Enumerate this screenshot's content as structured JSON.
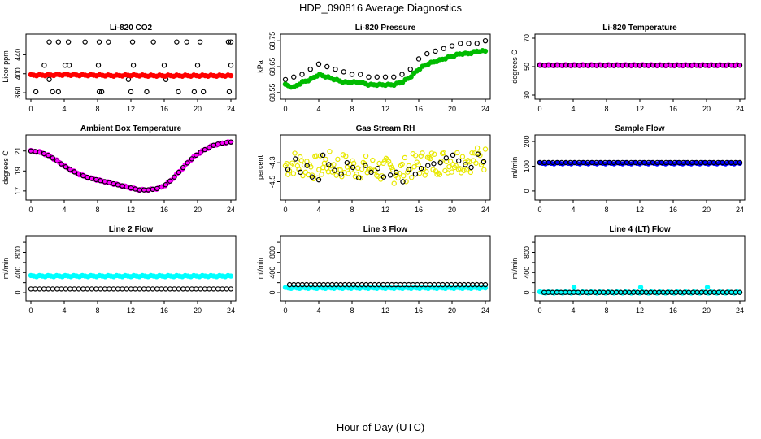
{
  "figure": {
    "title": "HDP_090816  Average Diagnostics",
    "xlabel": "Hour of Day (UTC)"
  },
  "chart_data": [
    {
      "type": "scatter",
      "title": "Li-820 CO2",
      "ylabel": "Licor ppm",
      "xlim": [
        0,
        24
      ],
      "ylim": [
        355,
        475
      ],
      "xticks": [
        0,
        4,
        8,
        12,
        16,
        20,
        24
      ],
      "yticks": [
        360,
        400,
        440
      ],
      "yticklabels": [
        "360",
        "400",
        "440"
      ],
      "series": [
        {
          "name": "open circles",
          "color": "#000000",
          "fill": false,
          "x": [
            2.2,
            3.3,
            4.5,
            6.5,
            8.2,
            9.3,
            12.2,
            14.7,
            17.5,
            18.7,
            20.3,
            23.7,
            24.0
          ],
          "y": [
            467,
            467,
            467,
            467,
            467,
            467,
            467,
            467,
            467,
            467,
            467,
            467,
            467
          ]
        },
        {
          "name": "open circles upper",
          "color": "#000000",
          "fill": false,
          "x": [
            1.6,
            4.1,
            4.6,
            8.1,
            12.3,
            16.0,
            20.0,
            24.0
          ],
          "y": [
            418,
            418,
            418,
            418,
            418,
            418,
            418,
            418
          ]
        },
        {
          "name": "open circles lower",
          "color": "#000000",
          "fill": false,
          "x": [
            0.6,
            2.2,
            2.6,
            3.3,
            8.2,
            8.5,
            11.7,
            12.0,
            13.9,
            16.2,
            17.7,
            19.6,
            20.7,
            23.8
          ],
          "y": [
            362,
            388,
            362,
            362,
            362,
            362,
            388,
            362,
            362,
            388,
            362,
            362,
            362,
            362
          ]
        },
        {
          "name": "CO2 mean",
          "color": "#ff0000",
          "fill": true,
          "band": true,
          "x": [
            0,
            2,
            4,
            6,
            8,
            10,
            12,
            14,
            16,
            18,
            20,
            22,
            24
          ],
          "y": [
            397,
            397,
            398,
            397,
            397,
            396,
            397,
            396,
            396,
            396,
            396,
            396,
            396
          ]
        }
      ]
    },
    {
      "type": "scatter",
      "title": "Li-820 Pressure",
      "ylabel": "kPa",
      "xlim": [
        0,
        24
      ],
      "ylim": [
        68.54,
        68.76
      ],
      "xticks": [
        0,
        4,
        8,
        12,
        16,
        20,
        24
      ],
      "yticks": [
        68.55,
        68.65,
        68.75
      ],
      "yticklabels": [
        "68.55",
        "68.65",
        "68.75"
      ],
      "series": [
        {
          "name": "pressure black",
          "color": "#000000",
          "fill": false,
          "x": [
            0,
            1,
            2,
            3,
            4,
            5,
            6,
            7,
            8,
            9,
            10,
            11,
            12,
            13,
            14,
            15,
            16,
            17,
            18,
            19,
            20,
            21,
            22,
            23,
            24
          ],
          "y": [
            68.6,
            68.61,
            68.62,
            68.64,
            68.66,
            68.65,
            68.64,
            68.63,
            68.62,
            68.62,
            68.61,
            68.61,
            68.61,
            68.61,
            68.62,
            68.64,
            68.68,
            68.7,
            68.71,
            68.72,
            68.73,
            68.74,
            68.74,
            68.74,
            68.75
          ]
        },
        {
          "name": "pressure green",
          "color": "#00bb00",
          "fill": true,
          "band": true,
          "x": [
            0,
            1,
            2,
            3,
            4,
            5,
            6,
            7,
            8,
            9,
            10,
            11,
            12,
            13,
            14,
            15,
            16,
            17,
            18,
            19,
            20,
            21,
            22,
            23,
            24
          ],
          "y": [
            68.58,
            68.57,
            68.59,
            68.6,
            68.62,
            68.61,
            68.6,
            68.59,
            68.59,
            68.59,
            68.58,
            68.58,
            68.58,
            68.58,
            68.59,
            68.61,
            68.64,
            68.66,
            68.67,
            68.68,
            68.69,
            68.7,
            68.7,
            68.71,
            68.71
          ]
        }
      ]
    },
    {
      "type": "scatter",
      "title": "Li-820 Temperature",
      "ylabel": "degrees C",
      "xlim": [
        0,
        24
      ],
      "ylim": [
        30,
        70
      ],
      "xticks": [
        0,
        4,
        8,
        12,
        16,
        20,
        24
      ],
      "yticks": [
        30,
        50,
        70
      ],
      "yticklabels": [
        "30",
        "50",
        "70"
      ],
      "series": [
        {
          "name": "temperature",
          "color": "#ff00ff",
          "fill": true,
          "band": true,
          "x": [
            0,
            24
          ],
          "y": [
            51,
            51
          ]
        },
        {
          "name": "temperature black",
          "color": "#000000",
          "fill": false,
          "band": true,
          "x": [
            0,
            24
          ],
          "y": [
            51,
            51
          ]
        }
      ]
    },
    {
      "type": "scatter",
      "title": "Ambient Box Temperature",
      "ylabel": "degrees C",
      "xlim": [
        0,
        24
      ],
      "ylim": [
        16.5,
        22.2
      ],
      "xticks": [
        0,
        4,
        8,
        12,
        16,
        20,
        24
      ],
      "yticks": [
        17,
        19,
        21
      ],
      "yticklabels": [
        "17",
        "19",
        "21"
      ],
      "series": [
        {
          "name": "box temperature",
          "color": "#ff00ff",
          "fill": true,
          "band": true,
          "x": [
            0,
            1,
            2,
            3,
            4,
            5,
            6,
            7,
            8,
            9,
            10,
            11,
            12,
            13,
            14,
            15,
            16,
            17,
            18,
            19,
            20,
            21,
            22,
            23,
            24
          ],
          "y": [
            21.0,
            20.9,
            20.6,
            20.1,
            19.5,
            19.0,
            18.6,
            18.3,
            18.1,
            17.9,
            17.7,
            17.5,
            17.3,
            17.1,
            17.1,
            17.2,
            17.5,
            18.2,
            19.1,
            20.0,
            20.7,
            21.2,
            21.6,
            21.8,
            21.9
          ]
        },
        {
          "name": "box temperature black",
          "color": "#000000",
          "fill": false,
          "band": true,
          "x": [
            0,
            1,
            2,
            3,
            4,
            5,
            6,
            7,
            8,
            9,
            10,
            11,
            12,
            13,
            14,
            15,
            16,
            17,
            18,
            19,
            20,
            21,
            22,
            23,
            24
          ],
          "y": [
            21.0,
            20.9,
            20.6,
            20.1,
            19.5,
            19.0,
            18.6,
            18.3,
            18.1,
            17.9,
            17.7,
            17.5,
            17.3,
            17.1,
            17.1,
            17.2,
            17.5,
            18.2,
            19.1,
            20.0,
            20.7,
            21.2,
            21.6,
            21.8,
            21.9
          ]
        }
      ]
    },
    {
      "type": "scatter",
      "title": "Gas Stream RH",
      "ylabel": "percent",
      "xlim": [
        0,
        24
      ],
      "ylim": [
        -4.65,
        -4.05
      ],
      "xticks": [
        0,
        4,
        8,
        12,
        16,
        20,
        24
      ],
      "yticks": [
        -4.5,
        -4.3
      ],
      "yticklabels": [
        "-4.5",
        "-4.3"
      ],
      "series": [
        {
          "name": "RH yellow",
          "color": "#ffff00",
          "fill": false,
          "scatter_cloud": true,
          "x": [
            0,
            1,
            2,
            3,
            4,
            5,
            6,
            7,
            8,
            9,
            10,
            11,
            12,
            13,
            14,
            15,
            16,
            17,
            18,
            19,
            20,
            21,
            22,
            23,
            24
          ],
          "y": [
            -4.33,
            -4.3,
            -4.32,
            -4.34,
            -4.36,
            -4.3,
            -4.34,
            -4.33,
            -4.35,
            -4.34,
            -4.36,
            -4.37,
            -4.38,
            -4.39,
            -4.38,
            -4.35,
            -4.31,
            -4.3,
            -4.3,
            -4.29,
            -4.28,
            -4.27,
            -4.27,
            -4.26,
            -4.26
          ]
        },
        {
          "name": "RH black",
          "color": "#000000",
          "fill": false,
          "x": [
            0.3,
            1.2,
            1.8,
            2.6,
            3.2,
            4.0,
            4.5,
            5.2,
            5.9,
            6.7,
            7.4,
            8.1,
            8.8,
            9.6,
            10.3,
            11.1,
            11.8,
            12.6,
            13.3,
            14.1,
            14.8,
            15.6,
            16.3,
            17.1,
            17.8,
            18.6,
            19.3,
            20.1,
            20.8,
            21.6,
            22.3,
            23.1,
            23.8
          ],
          "y": [
            -4.37,
            -4.26,
            -4.4,
            -4.33,
            -4.45,
            -4.48,
            -4.22,
            -4.32,
            -4.38,
            -4.42,
            -4.3,
            -4.35,
            -4.46,
            -4.33,
            -4.4,
            -4.36,
            -4.45,
            -4.43,
            -4.4,
            -4.5,
            -4.37,
            -4.42,
            -4.36,
            -4.33,
            -4.31,
            -4.3,
            -4.25,
            -4.22,
            -4.28,
            -4.32,
            -4.35,
            -4.21,
            -4.29
          ]
        }
      ]
    },
    {
      "type": "scatter",
      "title": "Sample Flow",
      "ylabel": "ml/min",
      "xlim": [
        0,
        24
      ],
      "ylim": [
        -20,
        210
      ],
      "xticks": [
        0,
        4,
        8,
        12,
        16,
        20,
        24
      ],
      "yticks": [
        0,
        100,
        200
      ],
      "yticklabels": [
        "0",
        "100",
        "200"
      ],
      "series": [
        {
          "name": "sample flow blue",
          "color": "#0000ff",
          "fill": true,
          "band": true,
          "x": [
            0,
            24
          ],
          "y": [
            112,
            112
          ]
        },
        {
          "name": "sample flow black",
          "color": "#000000",
          "fill": false,
          "band": true,
          "x": [
            0,
            24
          ],
          "y": [
            115,
            115
          ]
        }
      ]
    },
    {
      "type": "scatter",
      "title": "Line 2 Flow",
      "ylabel": "ml/min",
      "xlim": [
        0,
        24
      ],
      "ylim": [
        -80,
        1050
      ],
      "xticks": [
        0,
        4,
        8,
        12,
        16,
        20,
        24
      ],
      "yticks": [
        0,
        200,
        400,
        600,
        800,
        1000
      ],
      "yticklabels": [
        "0",
        "",
        "400",
        "",
        "800",
        ""
      ],
      "series": [
        {
          "name": "line 2 cyan",
          "color": "#00ffff",
          "fill": true,
          "band": true,
          "x": [
            0,
            24
          ],
          "y": [
            330,
            330
          ]
        },
        {
          "name": "line 2 black",
          "color": "#000000",
          "fill": false,
          "band": true,
          "x": [
            0,
            24
          ],
          "y": [
            75,
            75
          ]
        }
      ]
    },
    {
      "type": "scatter",
      "title": "Line 3 Flow",
      "ylabel": "ml/min",
      "xlim": [
        0,
        24
      ],
      "ylim": [
        -80,
        1050
      ],
      "xticks": [
        0,
        4,
        8,
        12,
        16,
        20,
        24
      ],
      "yticks": [
        0,
        200,
        400,
        600,
        800,
        1000
      ],
      "yticklabels": [
        "0",
        "",
        "400",
        "",
        "800",
        ""
      ],
      "series": [
        {
          "name": "line 3 cyan",
          "color": "#00ffff",
          "fill": true,
          "band": true,
          "x": [
            0,
            24
          ],
          "y": [
            95,
            95
          ]
        },
        {
          "name": "line 3 black",
          "color": "#000000",
          "fill": false,
          "band": true,
          "x": [
            0.5,
            24
          ],
          "y": [
            160,
            160
          ]
        }
      ]
    },
    {
      "type": "scatter",
      "title": "Line 4 (LT) Flow",
      "ylabel": "ml/min",
      "xlim": [
        0,
        24
      ],
      "ylim": [
        -80,
        1050
      ],
      "xticks": [
        0,
        4,
        8,
        12,
        16,
        20,
        24
      ],
      "yticks": [
        0,
        200,
        400,
        600,
        800,
        1000
      ],
      "yticklabels": [
        "0",
        "",
        "400",
        "",
        "800",
        ""
      ],
      "series": [
        {
          "name": "line 4 cyan",
          "color": "#00ffff",
          "fill": true,
          "band": true,
          "x": [
            0,
            24
          ],
          "y": [
            5,
            5
          ]
        },
        {
          "name": "line 4 spikes",
          "color": "#00ffff",
          "fill": true,
          "x": [
            4.1,
            12.1,
            20.1
          ],
          "y": [
            110,
            110,
            110
          ]
        },
        {
          "name": "line 4 black",
          "color": "#000000",
          "fill": false,
          "band": true,
          "x": [
            0.5,
            24
          ],
          "y": [
            5,
            5
          ]
        }
      ]
    }
  ]
}
